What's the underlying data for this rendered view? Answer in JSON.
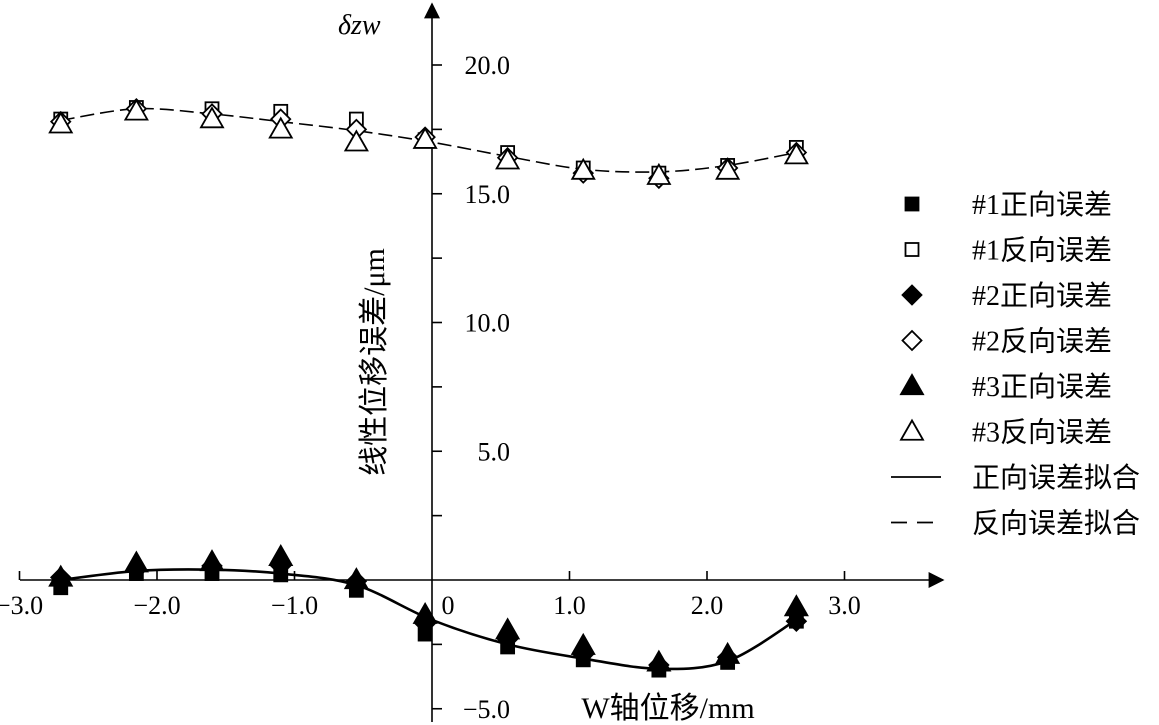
{
  "chart_data": {
    "type": "scatter",
    "title": "",
    "xlabel": "W轴位移/mm",
    "ylabel": "线性位移误差/μm",
    "ylabel_top": "δzw",
    "xlim": [
      -3.0,
      3.5
    ],
    "ylim": [
      -5.0,
      22.0
    ],
    "x_ticks": [
      -3.0,
      -2.0,
      -1.0,
      0,
      1.0,
      2.0,
      3.0
    ],
    "x_tick_labels": [
      "−3.0",
      "−2.0",
      "−1.0",
      "0",
      "1.0",
      "2.0",
      "3.0"
    ],
    "y_ticks": [
      -5.0,
      5.0,
      10.0,
      15.0,
      20.0
    ],
    "y_tick_labels": [
      "−5.0",
      "5.0",
      "10.0",
      "15.0",
      "20.0"
    ],
    "grid": false,
    "legend_position": "right",
    "series": [
      {
        "name": "#1正向误差",
        "marker": "square-filled",
        "x": [
          -2.7,
          -2.15,
          -1.6,
          -1.1,
          -0.55,
          -0.05,
          0.55,
          1.1,
          1.65,
          2.15,
          2.65
        ],
        "y": [
          -0.3,
          0.25,
          0.25,
          0.2,
          -0.4,
          -2.1,
          -2.6,
          -3.1,
          -3.5,
          -3.2,
          -1.6
        ]
      },
      {
        "name": "#1反向误差",
        "marker": "square-open",
        "x": [
          -2.7,
          -2.15,
          -1.6,
          -1.1,
          -0.55,
          -0.05,
          0.55,
          1.1,
          1.65,
          2.15,
          2.65
        ],
        "y": [
          17.9,
          18.35,
          18.3,
          18.2,
          17.9,
          17.1,
          16.6,
          16.0,
          15.8,
          16.1,
          16.8
        ]
      },
      {
        "name": "#2正向误差",
        "marker": "diamond-filled",
        "x": [
          -2.7,
          -2.15,
          -1.6,
          -1.1,
          -0.55,
          -0.05,
          0.55,
          1.1,
          1.65,
          2.15,
          2.65
        ],
        "y": [
          0.1,
          0.4,
          0.55,
          0.55,
          -0.05,
          -1.7,
          -2.3,
          -2.9,
          -3.3,
          -3.0,
          -1.6
        ]
      },
      {
        "name": "#2反向误差",
        "marker": "diamond-open",
        "x": [
          -2.7,
          -2.15,
          -1.6,
          -1.1,
          -0.55,
          -0.05,
          0.55,
          1.1,
          1.65,
          2.15,
          2.65
        ],
        "y": [
          17.8,
          18.3,
          18.1,
          17.9,
          17.5,
          17.2,
          16.4,
          15.8,
          15.6,
          16.0,
          16.6
        ]
      },
      {
        "name": "#3正向误差",
        "marker": "triangle-filled",
        "x": [
          -2.7,
          -2.15,
          -1.6,
          -1.1,
          -0.55,
          -0.05,
          0.55,
          1.1,
          1.65,
          2.15,
          2.65
        ],
        "y": [
          0.1,
          0.65,
          0.7,
          0.9,
          0.0,
          -1.35,
          -1.95,
          -2.55,
          -3.2,
          -2.9,
          -1.05
        ]
      },
      {
        "name": "#3反向误差",
        "marker": "triangle-open",
        "x": [
          -2.7,
          -2.15,
          -1.6,
          -1.1,
          -0.55,
          -0.05,
          0.55,
          1.1,
          1.65,
          2.15,
          2.65
        ],
        "y": [
          17.7,
          18.2,
          17.9,
          17.5,
          17.0,
          17.1,
          16.3,
          15.9,
          15.7,
          15.9,
          16.5
        ]
      },
      {
        "name": "正向误差拟合",
        "marker": "line-solid",
        "x": [
          -2.7,
          -2.15,
          -1.6,
          -1.1,
          -0.55,
          0.0,
          0.55,
          1.1,
          1.65,
          2.15,
          2.65
        ],
        "y": [
          0.0,
          0.35,
          0.4,
          0.25,
          -0.2,
          -1.55,
          -2.5,
          -3.05,
          -3.45,
          -3.15,
          -1.55
        ]
      },
      {
        "name": "反向误差拟合",
        "marker": "line-dashed",
        "x": [
          -2.7,
          -2.15,
          -1.6,
          -1.1,
          -0.55,
          0.0,
          0.55,
          1.1,
          1.65,
          2.15,
          2.65
        ],
        "y": [
          17.85,
          18.3,
          18.1,
          17.8,
          17.45,
          17.0,
          16.45,
          15.95,
          15.85,
          16.1,
          16.6
        ]
      }
    ]
  }
}
